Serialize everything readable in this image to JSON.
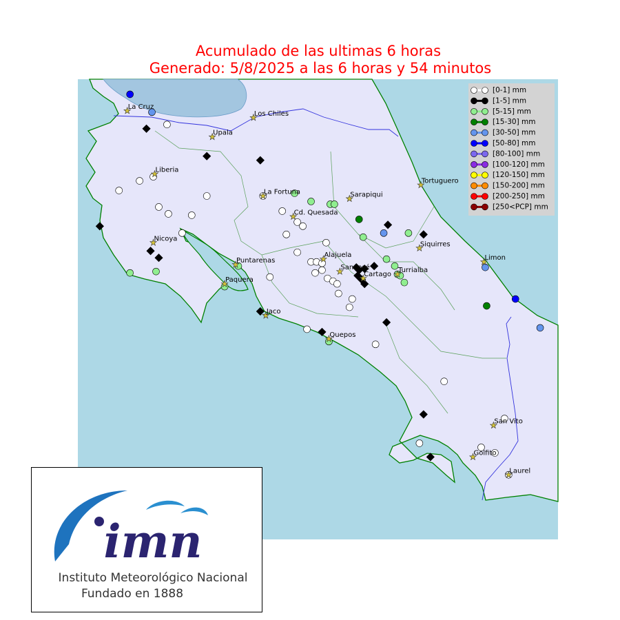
{
  "title": {
    "line1": "Acumulado de las ultimas 6 horas",
    "line2": "Generado:  5/8/2025 a las 6 horas y 54 minutos"
  },
  "map": {
    "lonlim": [
      -86.0,
      -82.5
    ],
    "latlim": [
      8.0,
      11.35
    ]
  },
  "legend": {
    "items": [
      {
        "label": "[0-1] mm",
        "color": "#ffffff",
        "marker": "circle",
        "lon": [
          -85.35,
          -85.45,
          -85.55,
          -85.7,
          -85.06,
          -85.41,
          -85.34,
          -85.17,
          -85.24,
          -84.65,
          -84.51,
          -84.4,
          -84.36,
          -84.48,
          -84.19,
          -84.4,
          -84.3,
          -84.26,
          -84.22,
          -84.22,
          -84.27,
          -84.18,
          -84.14,
          -84.11,
          -84.1,
          -84.0,
          -84.02,
          -84.6,
          -84.33,
          -83.83,
          -83.33,
          -82.89,
          -83.51,
          -83.06,
          -82.96,
          -82.86
        ],
        "lat": [
          11.02,
          10.64,
          10.61,
          10.54,
          10.5,
          10.42,
          10.37,
          10.36,
          10.23,
          10.5,
          10.39,
          10.31,
          10.28,
          10.22,
          10.16,
          10.09,
          10.02,
          10.02,
          10.01,
          9.96,
          9.94,
          9.9,
          9.88,
          9.86,
          9.79,
          9.75,
          9.69,
          9.91,
          9.53,
          9.42,
          9.15,
          8.88,
          8.7,
          8.67,
          8.63,
          8.47
        ]
      },
      {
        "label": "[1-5] mm",
        "color": "#000000",
        "marker": "diamond",
        "lon": [
          -85.5,
          -85.06,
          -84.67,
          -85.84,
          -85.47,
          -85.41,
          -83.74,
          -83.48,
          -83.84,
          -83.97,
          -83.95,
          -83.91,
          -83.96,
          -83.93,
          -83.91,
          -84.67,
          -84.22,
          -83.75,
          -83.48,
          -83.43
        ],
        "lat": [
          10.99,
          10.79,
          10.76,
          10.28,
          10.1,
          10.05,
          10.29,
          10.22,
          9.99,
          9.98,
          9.96,
          9.97,
          9.92,
          9.89,
          9.86,
          9.66,
          9.51,
          9.58,
          8.91,
          8.6
        ]
      },
      {
        "label": "[5-15] mm",
        "color": "#90ee90",
        "marker": "circle",
        "lon": [
          -84.42,
          -84.3,
          -84.16,
          -84.13,
          -83.92,
          -83.59,
          -83.75,
          -83.69,
          -83.67,
          -83.65,
          -83.62,
          -84.83,
          -84.93,
          -85.43,
          -85.62,
          -84.17
        ],
        "lat": [
          10.52,
          10.46,
          10.44,
          10.44,
          10.2,
          10.23,
          10.04,
          9.99,
          9.93,
          9.92,
          9.87,
          9.99,
          9.84,
          9.95,
          9.94,
          9.44
        ]
      },
      {
        "label": "[15-30] mm",
        "color": "#008000",
        "marker": "circle",
        "lon": [
          -83.95,
          -83.02
        ],
        "lat": [
          10.33,
          9.7
        ]
      },
      {
        "label": "[30-50] mm",
        "color": "#6495ed",
        "marker": "circle",
        "lon": [
          -85.46,
          -83.77,
          -83.03,
          -82.63
        ],
        "lat": [
          11.11,
          10.23,
          9.98,
          9.54
        ]
      },
      {
        "label": "[50-80] mm",
        "color": "#0000ff",
        "marker": "circle",
        "lon": [
          -85.62,
          -82.81
        ],
        "lat": [
          11.24,
          9.75
        ]
      },
      {
        "label": "[80-100] mm",
        "color": "#7b68ee",
        "marker": "circle",
        "lon": [],
        "lat": []
      },
      {
        "label": "[100-120] mm",
        "color": "#8a2be2",
        "marker": "circle",
        "lon": [],
        "lat": []
      },
      {
        "label": "[120-150] mm",
        "color": "#ffff00",
        "marker": "circle",
        "lon": [],
        "lat": []
      },
      {
        "label": "[150-200] mm",
        "color": "#ff8c00",
        "marker": "circle",
        "lon": [],
        "lat": []
      },
      {
        "label": "[200-250] mm",
        "color": "#ff0000",
        "marker": "circle",
        "lon": [],
        "lat": []
      },
      {
        "label": "[250<PCP] mm",
        "color": "#8b0000",
        "marker": "circle",
        "lon": [],
        "lat": []
      }
    ]
  },
  "cities": [
    {
      "name": "La Cruz",
      "lon": -85.64,
      "lat": 11.12
    },
    {
      "name": "Los Chiles",
      "lon": -84.72,
      "lat": 11.07
    },
    {
      "name": "Upala",
      "lon": -85.02,
      "lat": 10.93
    },
    {
      "name": "Liberia",
      "lon": -85.44,
      "lat": 10.66
    },
    {
      "name": "La Fortuna",
      "lon": -84.65,
      "lat": 10.5
    },
    {
      "name": "Tortuguero",
      "lon": -83.5,
      "lat": 10.58
    },
    {
      "name": "Sarapiqui",
      "lon": -84.02,
      "lat": 10.48
    },
    {
      "name": "Cd. Quesada",
      "lon": -84.43,
      "lat": 10.35
    },
    {
      "name": "Nicoya",
      "lon": -85.45,
      "lat": 10.16
    },
    {
      "name": "Siquirres",
      "lon": -83.51,
      "lat": 10.12
    },
    {
      "name": "Alajuela",
      "lon": -84.21,
      "lat": 10.04
    },
    {
      "name": "Puntarenas",
      "lon": -84.85,
      "lat": 10.0
    },
    {
      "name": "San José",
      "lon": -84.09,
      "lat": 9.95
    },
    {
      "name": "Cartago",
      "lon": -83.92,
      "lat": 9.9
    },
    {
      "name": "Turrialba",
      "lon": -83.67,
      "lat": 9.93
    },
    {
      "name": "Limon",
      "lon": -83.04,
      "lat": 10.02
    },
    {
      "name": "Paquera",
      "lon": -84.93,
      "lat": 9.86
    },
    {
      "name": "Jaco",
      "lon": -84.63,
      "lat": 9.63
    },
    {
      "name": "Quepos",
      "lon": -84.17,
      "lat": 9.46
    },
    {
      "name": "San Vito",
      "lon": -82.97,
      "lat": 8.83
    },
    {
      "name": "Golfito",
      "lon": -83.12,
      "lat": 8.6
    },
    {
      "name": "Laurel",
      "lon": -82.86,
      "lat": 8.47
    }
  ],
  "logo": {
    "brand": "imn",
    "name": "Instituto Meteorológico Nacional",
    "founded": "Fundado en 1888"
  }
}
